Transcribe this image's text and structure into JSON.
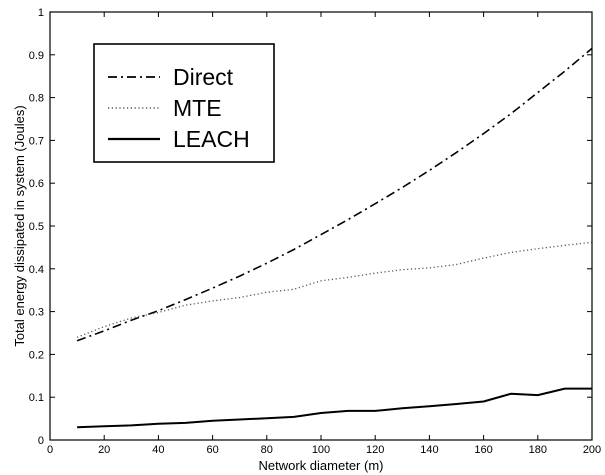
{
  "chart_data": {
    "type": "line",
    "title": "",
    "xlabel": "Network diameter (m)",
    "ylabel": "Total energy dissipated in system (Joules)",
    "xlim": [
      0,
      200
    ],
    "ylim": [
      0,
      1
    ],
    "xticks": [
      0,
      20,
      40,
      60,
      80,
      100,
      120,
      140,
      160,
      180,
      200
    ],
    "yticks": [
      0,
      0.1,
      0.2,
      0.3,
      0.4,
      0.5,
      0.6,
      0.7,
      0.8,
      0.9,
      1
    ],
    "grid": false,
    "legend_position": "top-left",
    "series": [
      {
        "name": "Direct",
        "style": "dash-dot",
        "color": "#000000",
        "x": [
          10,
          20,
          30,
          40,
          50,
          60,
          70,
          80,
          90,
          100,
          110,
          120,
          130,
          140,
          150,
          160,
          170,
          180,
          190,
          200
        ],
        "y": [
          0.232,
          0.255,
          0.28,
          0.302,
          0.328,
          0.355,
          0.383,
          0.413,
          0.445,
          0.48,
          0.515,
          0.552,
          0.59,
          0.63,
          0.672,
          0.716,
          0.762,
          0.812,
          0.862,
          0.915
        ]
      },
      {
        "name": "MTE",
        "style": "dotted",
        "color": "#555555",
        "x": [
          10,
          20,
          30,
          40,
          50,
          60,
          70,
          80,
          90,
          100,
          110,
          120,
          130,
          140,
          150,
          160,
          170,
          180,
          190,
          200
        ],
        "y": [
          0.24,
          0.265,
          0.285,
          0.298,
          0.315,
          0.325,
          0.333,
          0.345,
          0.352,
          0.372,
          0.38,
          0.39,
          0.398,
          0.402,
          0.41,
          0.425,
          0.438,
          0.447,
          0.455,
          0.462
        ]
      },
      {
        "name": "LEACH",
        "style": "solid",
        "color": "#000000",
        "x": [
          10,
          20,
          30,
          40,
          50,
          60,
          70,
          80,
          90,
          100,
          110,
          120,
          130,
          140,
          150,
          160,
          170,
          180,
          190,
          200
        ],
        "y": [
          0.03,
          0.032,
          0.034,
          0.038,
          0.04,
          0.045,
          0.048,
          0.051,
          0.054,
          0.063,
          0.068,
          0.068,
          0.074,
          0.079,
          0.084,
          0.09,
          0.108,
          0.105,
          0.12,
          0.12
        ]
      }
    ]
  }
}
